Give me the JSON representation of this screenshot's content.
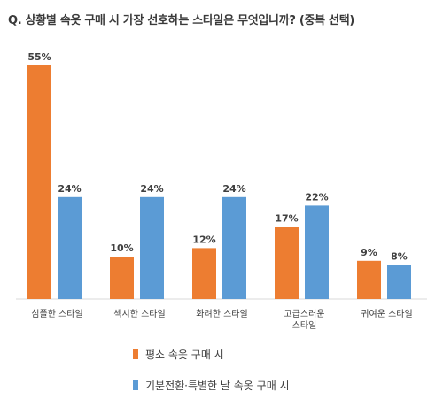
{
  "chart_data": {
    "type": "bar",
    "title": "Q. 상황별 속옷 구매 시 가장 선호하는 스타일은 무엇입니까? (중복 선택)",
    "categories": [
      [
        "심플한 스타일"
      ],
      [
        "섹시한 스타일"
      ],
      [
        "화려한 스타일"
      ],
      [
        "고급스러운",
        "스타일"
      ],
      [
        "귀여운 스타일"
      ]
    ],
    "series": [
      {
        "name": "평소 속옷 구매 시",
        "color": "#ED7D31",
        "values": [
          55,
          10,
          12,
          17,
          9
        ],
        "labels": [
          "55%",
          "10%",
          "12%",
          "17%",
          "9%"
        ]
      },
      {
        "name": "기분전환·특별한 날 속옷 구매 시",
        "color": "#5B9BD5",
        "values": [
          24,
          24,
          24,
          22,
          8
        ],
        "labels": [
          "24%",
          "24%",
          "24%",
          "22%",
          "8%"
        ]
      }
    ],
    "ylim": [
      0,
      60
    ],
    "grid": false,
    "legend_position": "bottom"
  }
}
